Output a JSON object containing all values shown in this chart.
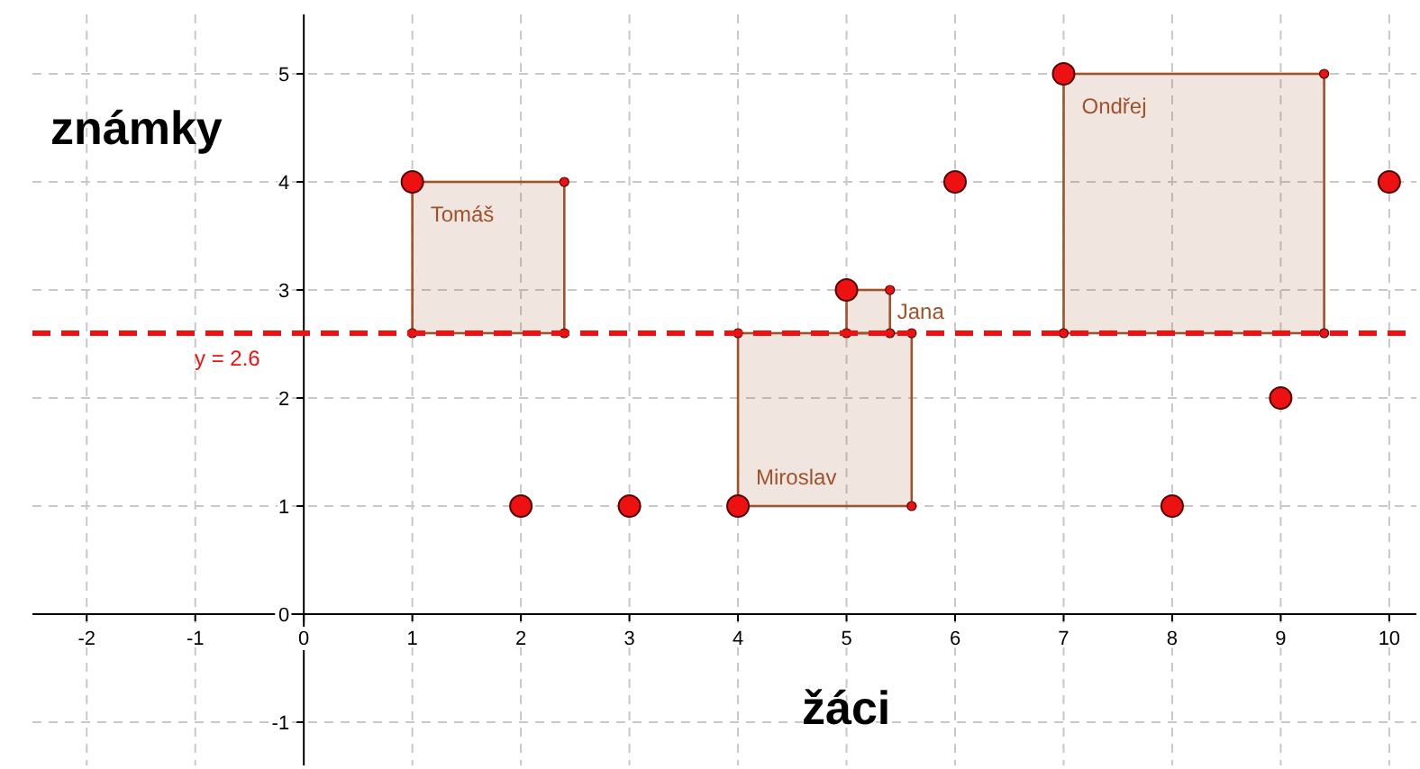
{
  "chart_data": {
    "type": "scatter",
    "xlabel": "žáci",
    "ylabel": "známky",
    "x": [
      1,
      2,
      3,
      4,
      5,
      6,
      7,
      8,
      9,
      10
    ],
    "series": [
      {
        "color": "#ee1111",
        "values": [
          4,
          1,
          1,
          1,
          3,
          4,
          5,
          1,
          2,
          4
        ],
        "value_labels": [
          "Tomáš",
          null,
          null,
          "Miroslav",
          "Jana",
          null,
          "Ondřej",
          null,
          null,
          null
        ]
      }
    ],
    "marker": "circle",
    "grid": true,
    "xlim": [
      -2.5,
      10.25
    ],
    "xticks": [
      -2,
      -1,
      0,
      1,
      2,
      3,
      4,
      5,
      6,
      7,
      8,
      9,
      10
    ],
    "ylim": [
      -1.4,
      5.55
    ],
    "yticks": [
      -1,
      0,
      1,
      2,
      3,
      4,
      5
    ],
    "ref_lines": [
      {
        "axis": "y",
        "value": 2.6,
        "label": "y = 2.6",
        "color": "#ee1111",
        "line_style": "dashed"
      }
    ]
  }
}
